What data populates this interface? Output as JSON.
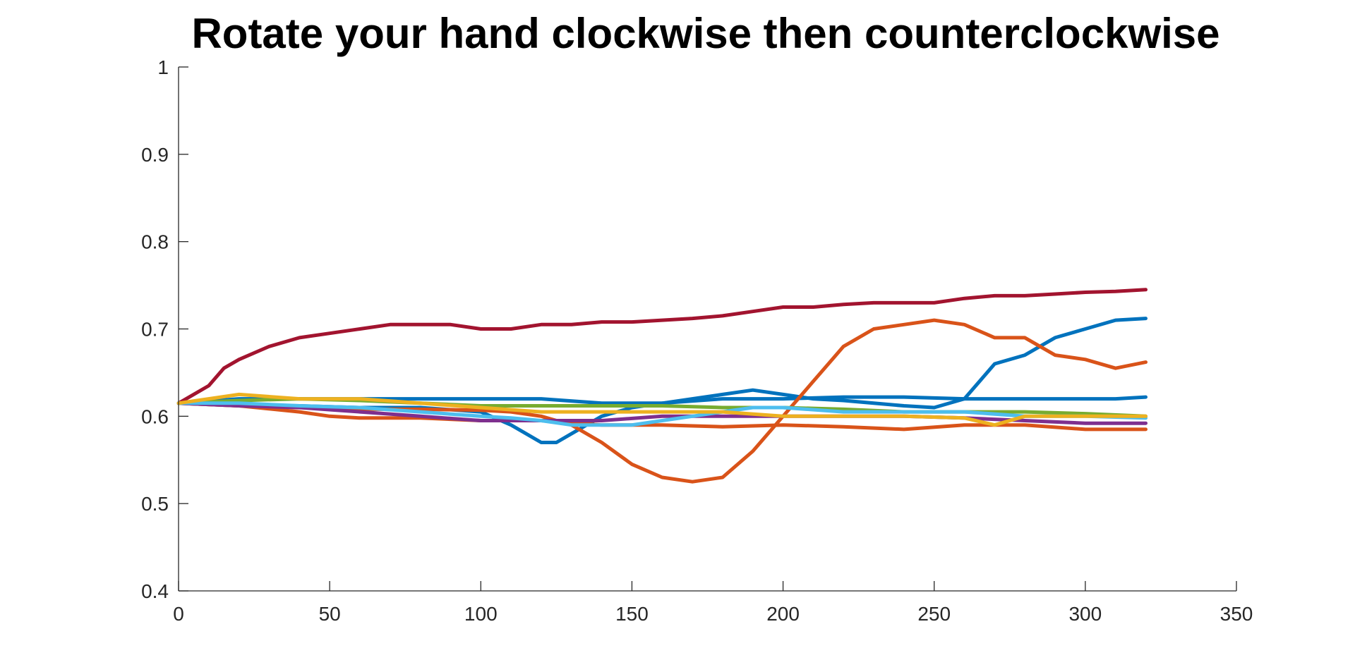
{
  "chart_data": {
    "type": "line",
    "title": "Rotate your hand clockwise then counterclockwise",
    "xlabel": "",
    "ylabel": "",
    "xlim": [
      0,
      350
    ],
    "ylim": [
      0.4,
      1
    ],
    "xticks": [
      0,
      50,
      100,
      150,
      200,
      250,
      300,
      350
    ],
    "yticks": [
      0.4,
      0.5,
      0.6,
      0.7,
      0.8,
      0.9,
      1
    ],
    "yticklabels": [
      "0.4",
      "0.5",
      "0.6",
      "0.7",
      "0.8",
      "0.9",
      "1"
    ],
    "grid": false,
    "legend": "none",
    "series": [
      {
        "color": "#A2142F",
        "x": [
          0,
          5,
          10,
          15,
          20,
          30,
          40,
          50,
          60,
          70,
          80,
          90,
          100,
          110,
          120,
          130,
          140,
          150,
          160,
          170,
          180,
          190,
          200,
          210,
          220,
          230,
          240,
          250,
          260,
          270,
          280,
          290,
          300,
          310,
          320
        ],
        "y": [
          0.615,
          0.625,
          0.635,
          0.655,
          0.665,
          0.68,
          0.69,
          0.695,
          0.7,
          0.705,
          0.705,
          0.705,
          0.7,
          0.7,
          0.705,
          0.705,
          0.708,
          0.708,
          0.71,
          0.712,
          0.715,
          0.72,
          0.725,
          0.725,
          0.728,
          0.73,
          0.73,
          0.73,
          0.735,
          0.738,
          0.738,
          0.74,
          0.742,
          0.743,
          0.745
        ]
      },
      {
        "color": "#0072BD",
        "x": [
          0,
          10,
          20,
          40,
          60,
          80,
          100,
          110,
          115,
          120,
          125,
          130,
          140,
          150,
          160,
          170,
          180,
          190,
          200,
          210,
          220,
          230,
          240,
          250,
          260,
          265,
          270,
          280,
          290,
          300,
          310,
          320
        ],
        "y": [
          0.615,
          0.615,
          0.613,
          0.612,
          0.61,
          0.61,
          0.605,
          0.59,
          0.58,
          0.57,
          0.57,
          0.58,
          0.6,
          0.61,
          0.615,
          0.62,
          0.625,
          0.63,
          0.625,
          0.62,
          0.618,
          0.615,
          0.612,
          0.61,
          0.62,
          0.64,
          0.66,
          0.67,
          0.69,
          0.7,
          0.71,
          0.712
        ]
      },
      {
        "color": "#0072BD",
        "x": [
          0,
          20,
          40,
          60,
          80,
          100,
          120,
          140,
          160,
          180,
          200,
          220,
          240,
          260,
          280,
          300,
          310,
          320
        ],
        "y": [
          0.615,
          0.62,
          0.62,
          0.62,
          0.62,
          0.62,
          0.62,
          0.615,
          0.615,
          0.62,
          0.62,
          0.622,
          0.622,
          0.62,
          0.62,
          0.62,
          0.62,
          0.622
        ]
      },
      {
        "color": "#D95319",
        "x": [
          0,
          20,
          40,
          60,
          80,
          100,
          110,
          120,
          130,
          140,
          150,
          160,
          170,
          180,
          190,
          200,
          210,
          220,
          230,
          240,
          250,
          260,
          270,
          280,
          290,
          300,
          310,
          320
        ],
        "y": [
          0.615,
          0.612,
          0.61,
          0.608,
          0.608,
          0.607,
          0.605,
          0.6,
          0.59,
          0.57,
          0.545,
          0.53,
          0.525,
          0.53,
          0.56,
          0.6,
          0.64,
          0.68,
          0.7,
          0.705,
          0.71,
          0.705,
          0.69,
          0.69,
          0.67,
          0.665,
          0.655,
          0.662
        ]
      },
      {
        "color": "#D95319",
        "x": [
          0,
          20,
          40,
          50,
          60,
          80,
          100,
          120,
          140,
          160,
          180,
          200,
          220,
          240,
          260,
          280,
          300,
          320
        ],
        "y": [
          0.615,
          0.612,
          0.605,
          0.6,
          0.598,
          0.598,
          0.595,
          0.595,
          0.59,
          0.59,
          0.588,
          0.59,
          0.588,
          0.585,
          0.59,
          0.59,
          0.585,
          0.585
        ]
      },
      {
        "color": "#7E2F8E",
        "x": [
          0,
          20,
          40,
          60,
          80,
          100,
          120,
          140,
          160,
          180,
          200,
          220,
          240,
          260,
          280,
          300,
          320
        ],
        "y": [
          0.615,
          0.612,
          0.61,
          0.605,
          0.6,
          0.595,
          0.595,
          0.595,
          0.6,
          0.6,
          0.6,
          0.6,
          0.6,
          0.598,
          0.595,
          0.592,
          0.592
        ]
      },
      {
        "color": "#77AC30",
        "x": [
          0,
          20,
          40,
          60,
          80,
          100,
          120,
          140,
          160,
          180,
          200,
          220,
          240,
          260,
          280,
          300,
          320
        ],
        "y": [
          0.615,
          0.618,
          0.62,
          0.618,
          0.615,
          0.612,
          0.612,
          0.612,
          0.612,
          0.61,
          0.61,
          0.608,
          0.605,
          0.605,
          0.605,
          0.603,
          0.6
        ]
      },
      {
        "color": "#4DBEEE",
        "x": [
          0,
          20,
          40,
          60,
          80,
          100,
          110,
          120,
          130,
          140,
          150,
          160,
          170,
          180,
          190,
          200,
          220,
          240,
          260,
          280,
          300,
          320
        ],
        "y": [
          0.615,
          0.615,
          0.612,
          0.61,
          0.605,
          0.6,
          0.598,
          0.595,
          0.59,
          0.59,
          0.59,
          0.595,
          0.6,
          0.605,
          0.61,
          0.61,
          0.605,
          0.605,
          0.605,
          0.6,
          0.6,
          0.598
        ]
      },
      {
        "color": "#EDB120",
        "x": [
          0,
          10,
          20,
          40,
          60,
          80,
          100,
          120,
          140,
          160,
          180,
          200,
          220,
          240,
          260,
          270,
          280,
          300,
          320
        ],
        "y": [
          0.615,
          0.62,
          0.625,
          0.62,
          0.62,
          0.615,
          0.61,
          0.605,
          0.605,
          0.605,
          0.605,
          0.6,
          0.6,
          0.6,
          0.598,
          0.59,
          0.6,
          0.6,
          0.6
        ]
      }
    ]
  }
}
